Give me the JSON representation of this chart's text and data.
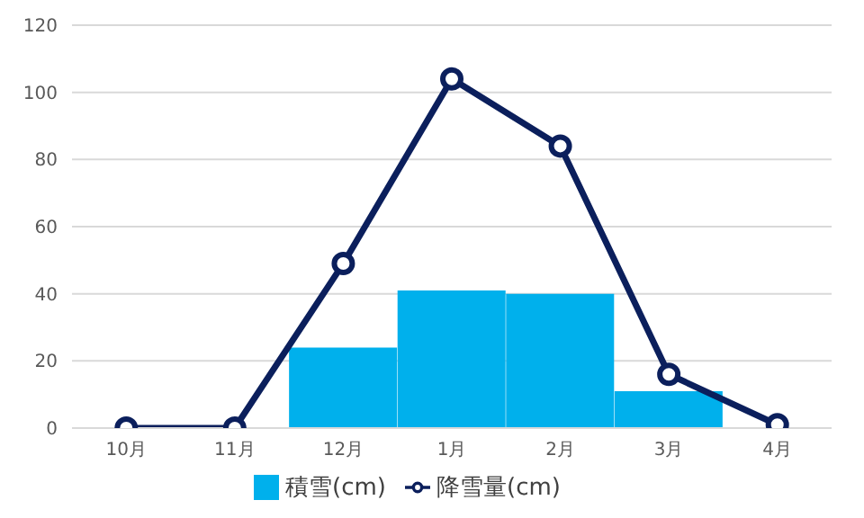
{
  "chart_data": {
    "type": "bar",
    "categories": [
      "10月",
      "11月",
      "12月",
      "1月",
      "2月",
      "3月",
      "4月"
    ],
    "series": [
      {
        "name": "積雪(cm)",
        "color": "#00b0ec",
        "values": [
          0,
          0,
          24,
          41,
          40,
          11,
          0
        ]
      },
      {
        "name": "降雪量(cm)",
        "type": "line",
        "color": "#0b1f5c",
        "values": [
          0,
          0,
          49,
          104,
          84,
          16,
          1
        ],
        "marker": "circle"
      }
    ],
    "ylim": [
      0,
      120
    ],
    "yticks": [
      0,
      20,
      40,
      60,
      80,
      100,
      120
    ],
    "grid": "y",
    "legend": "bottom"
  }
}
